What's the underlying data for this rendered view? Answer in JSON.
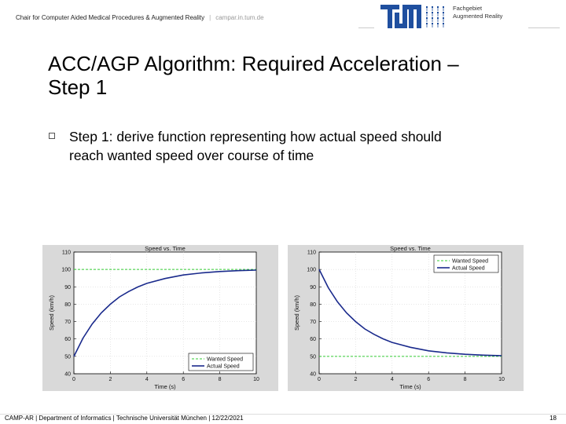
{
  "header": {
    "chair": "Chair for Computer Aided Medical Procedures & Augmented Reality",
    "separator": "|",
    "url": "campar.in.tum.de",
    "dept_line1": "Fachgebiet",
    "dept_line2": "Augmented Reality"
  },
  "slide": {
    "title_line1": "ACC/AGP Algorithm: Required Acceleration –",
    "title_line2": "Step 1",
    "bullet_line1": "Step 1: derive function representing how actual speed should",
    "bullet_line2": "reach wanted speed over course of time"
  },
  "footer": {
    "text": "CAMP-AR | Department of Informatics | Technische Universität München | 12/22/2021",
    "page": "18"
  },
  "colors": {
    "wanted": "#33cc33",
    "actual": "#1a2a8c",
    "chart_bg": "#d9d9d9"
  },
  "chart_data": [
    {
      "type": "line",
      "title": "Speed vs. Time",
      "xlabel": "Time (s)",
      "ylabel": "Speed (km/h)",
      "xlim": [
        0,
        10
      ],
      "ylim": [
        40,
        110
      ],
      "xticks": [
        "0",
        "2",
        "4",
        "6",
        "8",
        "10"
      ],
      "yticks": [
        "40",
        "50",
        "60",
        "70",
        "80",
        "90",
        "100",
        "110"
      ],
      "legend_position": "bottom-right",
      "series": [
        {
          "name": "Wanted Speed",
          "x": [
            0,
            10
          ],
          "y": [
            100,
            100
          ]
        },
        {
          "name": "Actual Speed",
          "x": [
            0,
            0.5,
            1,
            1.5,
            2,
            2.5,
            3,
            3.5,
            4,
            5,
            6,
            7,
            8,
            9,
            10
          ],
          "y": [
            50,
            60.5,
            68.6,
            75,
            80,
            84.2,
            87.3,
            89.9,
            92,
            94.8,
            96.8,
            98,
            98.8,
            99.3,
            99.6
          ]
        }
      ]
    },
    {
      "type": "line",
      "title": "Speed vs. Time",
      "xlabel": "Time (s)",
      "ylabel": "Speed (km/h)",
      "xlim": [
        0,
        10
      ],
      "ylim": [
        40,
        110
      ],
      "xticks": [
        "0",
        "2",
        "4",
        "6",
        "8",
        "10"
      ],
      "yticks": [
        "40",
        "50",
        "60",
        "70",
        "80",
        "90",
        "100",
        "110"
      ],
      "legend_position": "top-right",
      "series": [
        {
          "name": "Wanted Speed",
          "x": [
            0,
            10
          ],
          "y": [
            50,
            50
          ]
        },
        {
          "name": "Actual Speed",
          "x": [
            0,
            0.5,
            1,
            1.5,
            2,
            2.5,
            3,
            3.5,
            4,
            5,
            6,
            7,
            8,
            9,
            10
          ],
          "y": [
            100,
            89.5,
            81.4,
            75,
            70,
            65.8,
            62.7,
            60.1,
            58,
            55.2,
            53.2,
            52,
            51.2,
            50.7,
            50.4
          ]
        }
      ]
    }
  ]
}
